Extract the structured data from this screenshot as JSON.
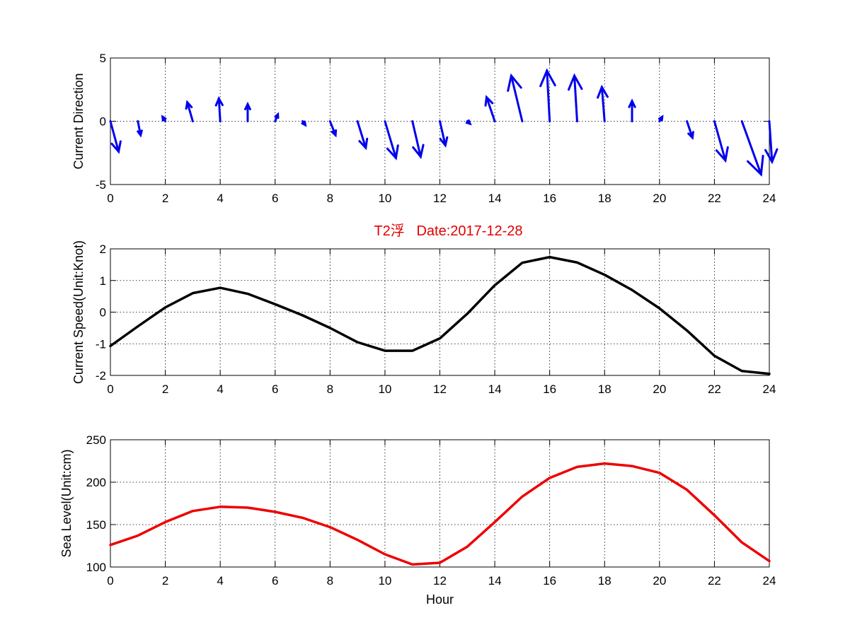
{
  "chart_data": [
    {
      "type": "quiver",
      "ylabel": "Current Direction",
      "xlim": [
        0,
        24
      ],
      "ylim": [
        -5,
        5
      ],
      "xticks": [
        0,
        2,
        4,
        6,
        8,
        10,
        12,
        14,
        16,
        18,
        20,
        22,
        24
      ],
      "yticks": [
        5,
        0,
        -5
      ],
      "grid": true,
      "color": "#0000ee",
      "x": [
        0,
        1,
        2,
        3,
        4,
        5,
        6,
        7,
        8,
        9,
        10,
        11,
        12,
        13,
        14,
        15,
        16,
        17,
        18,
        19,
        20,
        21,
        22,
        23,
        24
      ],
      "u": [
        0.3,
        0.1,
        -0.1,
        -0.2,
        -0.05,
        0.0,
        0.1,
        0.1,
        0.2,
        0.3,
        0.4,
        0.3,
        0.2,
        0.1,
        -0.3,
        -0.4,
        -0.1,
        -0.1,
        -0.1,
        0.0,
        0.1,
        0.2,
        0.4,
        0.7,
        0.1
      ],
      "v": [
        -2.4,
        -1.1,
        0.35,
        1.5,
        1.8,
        1.35,
        0.55,
        -0.3,
        -1.1,
        -2.1,
        -2.9,
        -2.8,
        -1.9,
        -0.2,
        1.9,
        3.6,
        4.0,
        3.6,
        2.7,
        1.6,
        0.35,
        -1.3,
        -3.1,
        -4.2,
        -3.2
      ]
    },
    {
      "type": "line",
      "title": "T2浮   Date:2017-12-28",
      "ylabel": "Current Speed(Unit:Knot)",
      "xlim": [
        0,
        24
      ],
      "ylim": [
        -2,
        2
      ],
      "xticks": [
        0,
        2,
        4,
        6,
        8,
        10,
        12,
        14,
        16,
        18,
        20,
        22,
        24
      ],
      "yticks": [
        2,
        1,
        0,
        -1,
        -2
      ],
      "grid": true,
      "color": "#000000",
      "x": [
        0,
        1,
        2,
        3,
        4,
        5,
        6,
        7,
        8,
        9,
        10,
        11,
        12,
        13,
        14,
        15,
        16,
        17,
        18,
        19,
        20,
        21,
        22,
        23,
        24
      ],
      "y": [
        -1.07,
        -0.45,
        0.15,
        0.6,
        0.77,
        0.58,
        0.25,
        -0.1,
        -0.5,
        -0.95,
        -1.22,
        -1.22,
        -0.83,
        -0.05,
        0.85,
        1.56,
        1.74,
        1.57,
        1.18,
        0.7,
        0.12,
        -0.58,
        -1.38,
        -1.86,
        -1.95
      ]
    },
    {
      "type": "line",
      "xlabel": "Hour",
      "ylabel": "Sea Level(Unit:cm)",
      "xlim": [
        0,
        24
      ],
      "ylim": [
        100,
        250
      ],
      "xticks": [
        0,
        2,
        4,
        6,
        8,
        10,
        12,
        14,
        16,
        18,
        20,
        22,
        24
      ],
      "yticks": [
        250,
        200,
        150,
        100
      ],
      "grid": true,
      "color": "#ee0000",
      "x": [
        0,
        1,
        2,
        3,
        4,
        5,
        6,
        7,
        8,
        9,
        10,
        11,
        12,
        13,
        14,
        15,
        16,
        17,
        18,
        19,
        20,
        21,
        22,
        23,
        24
      ],
      "y": [
        126,
        137,
        153,
        166,
        171,
        170,
        165,
        158,
        147,
        132,
        115,
        103,
        105,
        124,
        153,
        183,
        205,
        218,
        222,
        219,
        211,
        191,
        161,
        129,
        107
      ]
    }
  ]
}
